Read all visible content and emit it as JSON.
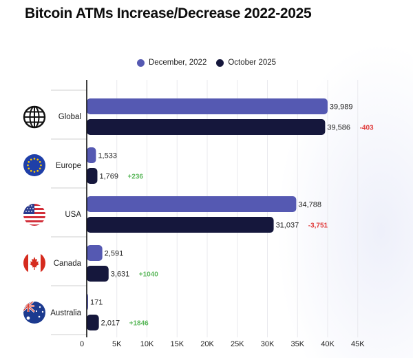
{
  "title": "Bitcoin ATMs Increase/Decrease 2022-2025",
  "colors": {
    "series_2022": "#5559b2",
    "series_2025": "#15173c",
    "increase": "#5cb85c",
    "decrease": "#e03b3b"
  },
  "regions": [
    {
      "label": "Global",
      "icon": "globe-icon",
      "change": "-403"
    },
    {
      "label": "Europe",
      "icon": "eu-flag-icon",
      "change": "+236"
    },
    {
      "label": "USA",
      "icon": "usa-flag-icon",
      "change": "-3,751"
    },
    {
      "label": "Canada",
      "icon": "canada-flag-icon",
      "change": "+1040"
    },
    {
      "label": "Australia",
      "icon": "australia-flag-icon",
      "change": "+1846"
    }
  ],
  "chart_data": {
    "type": "bar",
    "orientation": "horizontal",
    "title": "Bitcoin ATMs Increase/Decrease 2022-2025",
    "categories": [
      "Global",
      "Europe",
      "USA",
      "Canada",
      "Australia"
    ],
    "series": [
      {
        "name": "December, 2022",
        "values": [
          39989,
          1533,
          34788,
          2591,
          171
        ],
        "labels": [
          "39,989",
          "1,533",
          "34,788",
          "2,591",
          "171"
        ]
      },
      {
        "name": "October 2025",
        "values": [
          39586,
          1769,
          31037,
          3631,
          2017
        ],
        "labels": [
          "39,586",
          "1,769",
          "31,037",
          "3,631",
          "2,017"
        ]
      }
    ],
    "xlim": [
      0,
      45000
    ],
    "xticks": [
      0,
      5000,
      10000,
      15000,
      20000,
      25000,
      30000,
      35000,
      40000,
      45000
    ],
    "xtick_labels": [
      "0",
      "5K",
      "10K",
      "15K",
      "20K",
      "25K",
      "30K",
      "35K",
      "40K",
      "45K"
    ],
    "grid": true,
    "legend_position": "top-center"
  }
}
